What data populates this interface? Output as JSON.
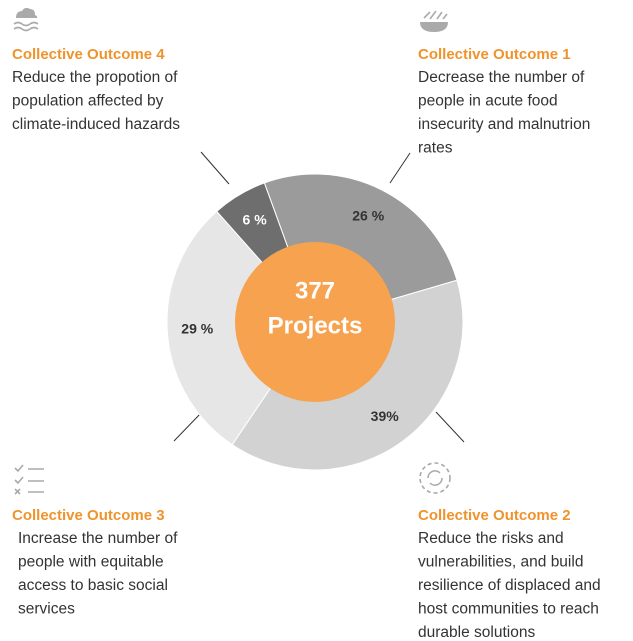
{
  "chart_data": {
    "type": "pie",
    "categories": [
      "Collective Outcome 1",
      "Collective Outcome 2",
      "Collective Outcome 3",
      "Collective Outcome 4"
    ],
    "values": [
      26,
      39,
      29,
      6
    ],
    "value_labels": [
      "26 %",
      "39%",
      "29 %",
      "6 %"
    ],
    "colors": [
      "#9b9b9b",
      "#d2d2d2",
      "#e6e6e6",
      "#6e6e6e"
    ],
    "center_label": [
      "377",
      "Projects"
    ],
    "center_color": "#f7a24f",
    "descriptions": [
      [
        "Decrease the number of",
        "people in acute food",
        "insecurity and malnutrion",
        "rates"
      ],
      [
        "Reduce the risks and",
        "vulnerabilities, and build",
        "resilience of displaced and",
        "host communities to reach",
        "durable solutions"
      ],
      [
        "Increase the number of",
        "people with equitable",
        "access to basic social",
        "services"
      ],
      [
        "Reduce the propotion of",
        "population affected by",
        "climate-induced hazards"
      ]
    ]
  }
}
